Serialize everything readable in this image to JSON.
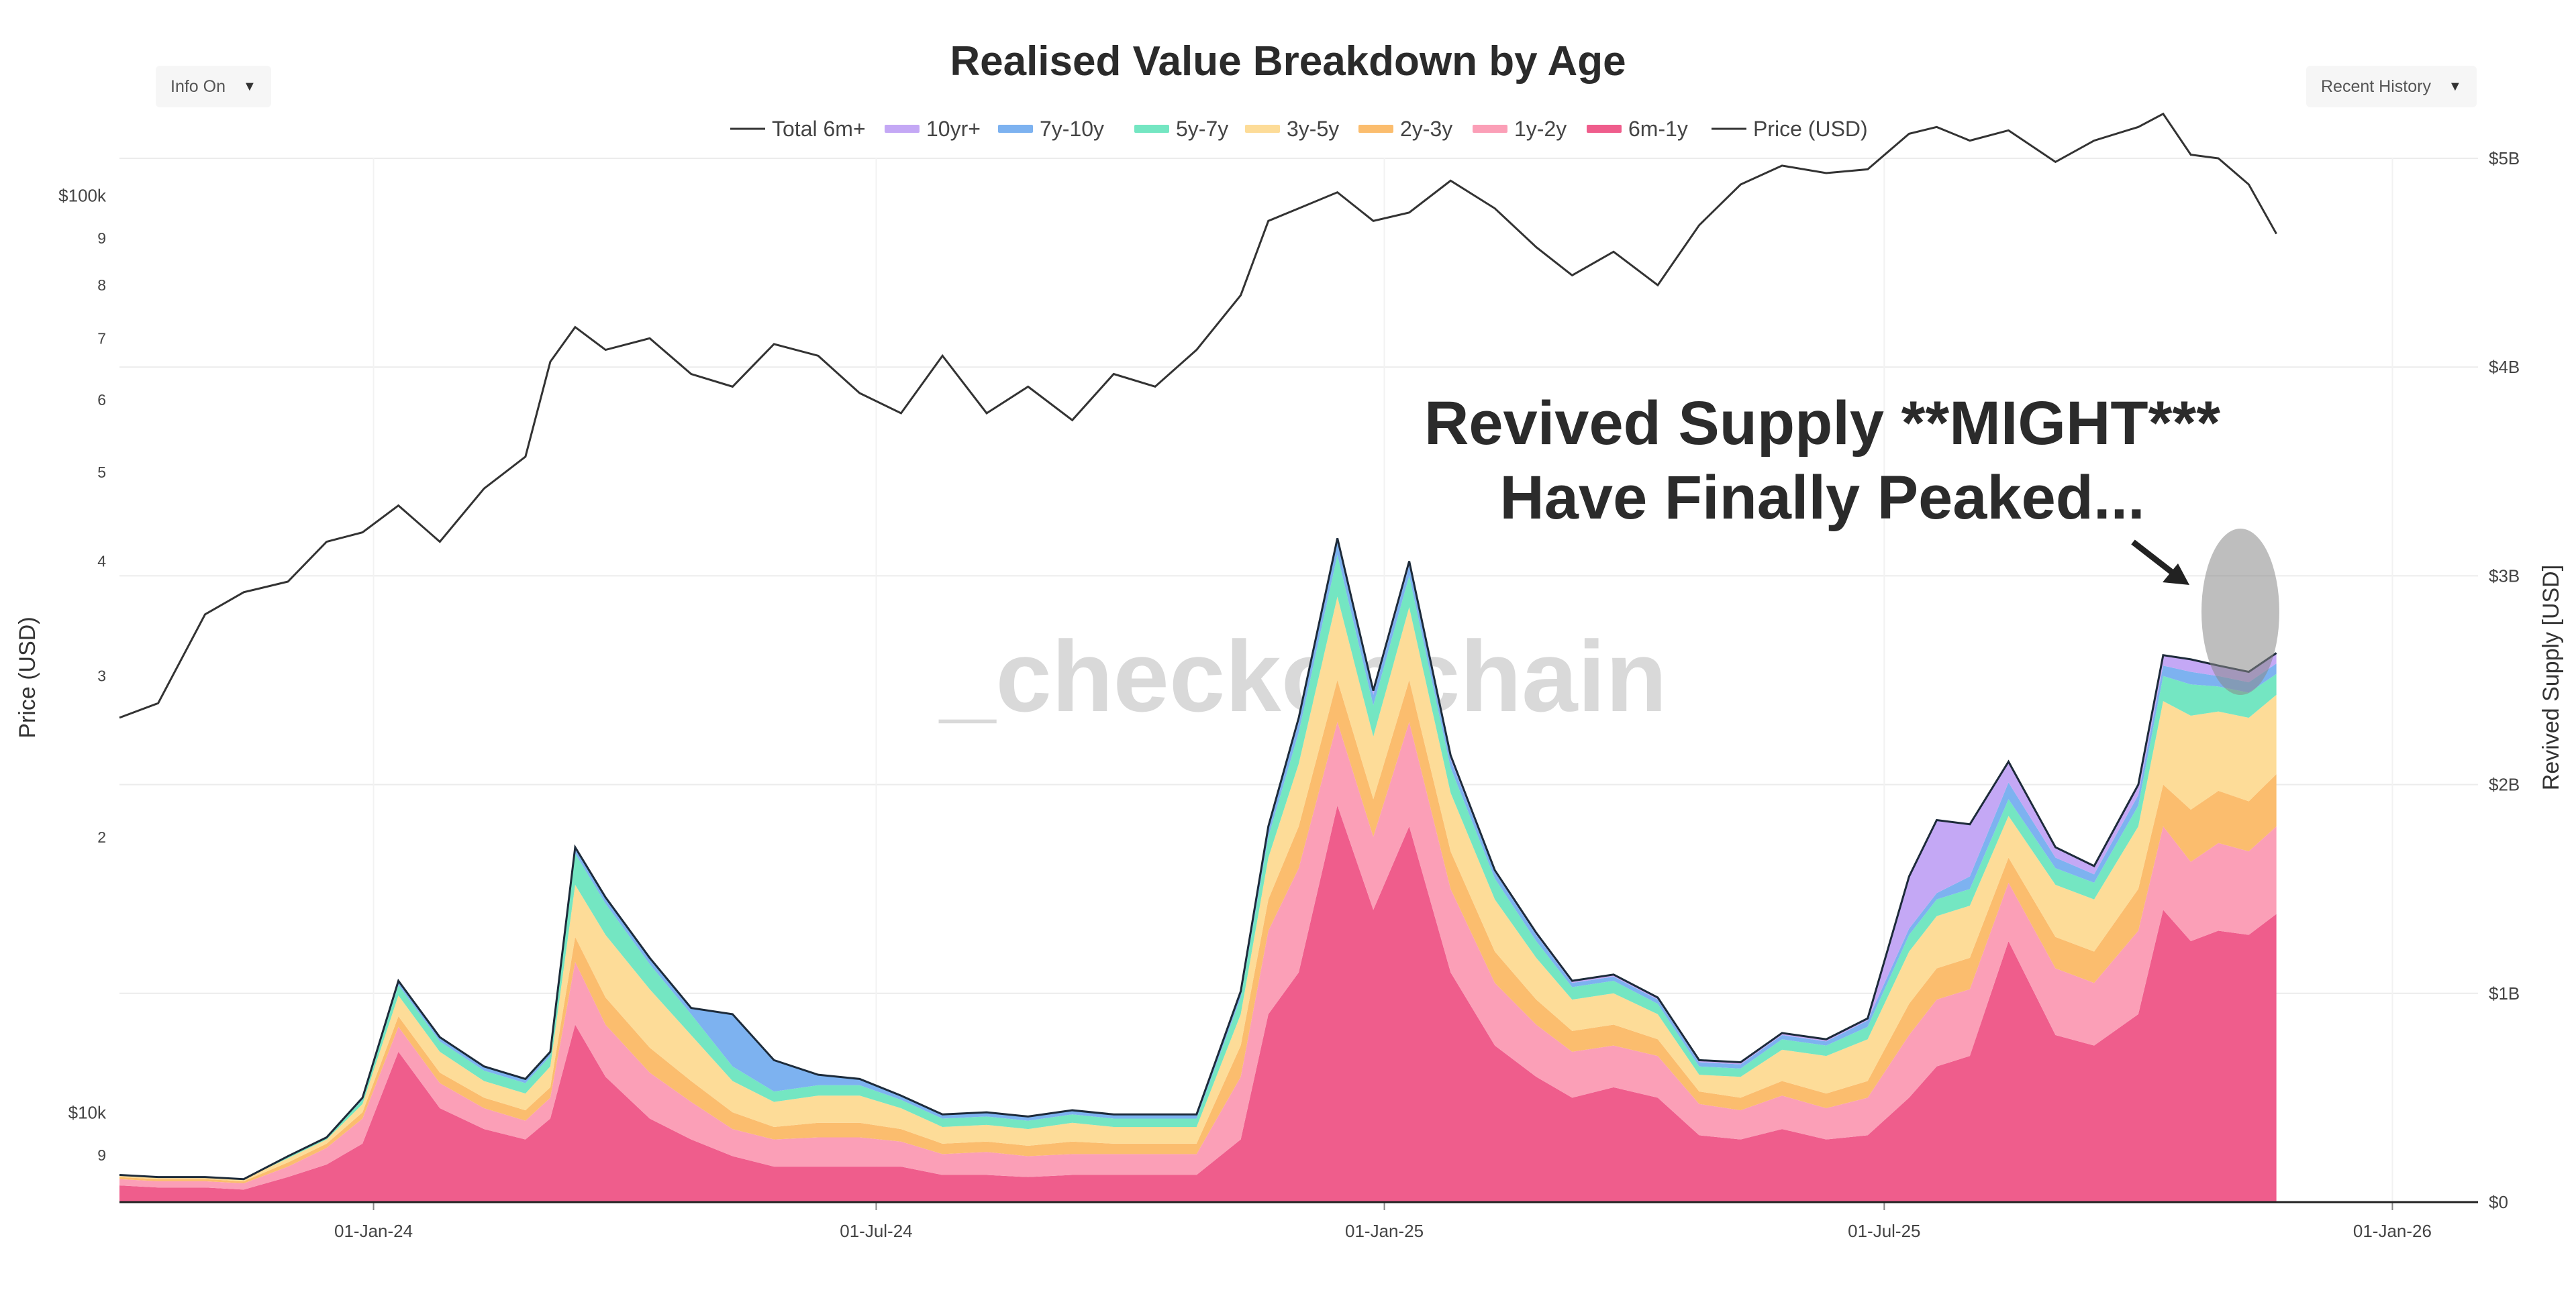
{
  "controls": {
    "info_label": "Info On",
    "history_label": "Recent History",
    "caret": "▼"
  },
  "chart_data": {
    "type": "area",
    "title": "Realised Value Breakdown by Age",
    "ylabel_left": "Price (USD)",
    "ylabel_right": "Revived Supply [USD]",
    "watermark": "_checkonchain",
    "annotation": [
      "Revived Supply **MIGHT***",
      "Have Finally Peaked..."
    ],
    "x_ticks": [
      "01-Jan-24",
      "01-Jul-24",
      "01-Jan-25",
      "01-Jul-25",
      "01-Jan-26"
    ],
    "y_right_ticks": [
      "$0",
      "$1B",
      "$2B",
      "$3B",
      "$4B",
      "$5B"
    ],
    "y_right_range": [
      0,
      5000000000
    ],
    "y_left_ticks": [
      "$10k",
      "9",
      "$100k",
      "9",
      "8",
      "7",
      "6",
      "5",
      "4",
      "3",
      "2"
    ],
    "y_left_scale": "log",
    "y_left_range": [
      8000,
      110000
    ],
    "legend": [
      {
        "name": "Total 6m+",
        "kind": "line",
        "color": "#333333"
      },
      {
        "name": "10yr+",
        "kind": "area",
        "color": "#c4a8f5"
      },
      {
        "name": "7y-10y",
        "kind": "area",
        "color": "#7db2f0"
      },
      {
        "name": "5y-7y",
        "kind": "area",
        "color": "#74e6c2"
      },
      {
        "name": "3y-5y",
        "kind": "area",
        "color": "#fddc98"
      },
      {
        "name": "2y-3y",
        "kind": "area",
        "color": "#fbbd6e"
      },
      {
        "name": "1y-2y",
        "kind": "area",
        "color": "#fb9fb7"
      },
      {
        "name": "6m-1y",
        "kind": "area",
        "color": "#ef5d8c"
      },
      {
        "name": "Price (USD)",
        "kind": "line",
        "color": "#333333"
      }
    ],
    "dates": [
      "2023-10-01",
      "2023-10-15",
      "2023-11-01",
      "2023-11-15",
      "2023-12-01",
      "2023-12-15",
      "2023-12-28",
      "2024-01-10",
      "2024-01-25",
      "2024-02-10",
      "2024-02-25",
      "2024-03-05",
      "2024-03-14",
      "2024-03-25",
      "2024-04-10",
      "2024-04-25",
      "2024-05-10",
      "2024-05-25",
      "2024-06-10",
      "2024-06-25",
      "2024-07-10",
      "2024-07-25",
      "2024-08-10",
      "2024-08-25",
      "2024-09-10",
      "2024-09-25",
      "2024-10-10",
      "2024-10-25",
      "2024-11-10",
      "2024-11-20",
      "2024-12-01",
      "2024-12-15",
      "2024-12-28",
      "2025-01-10",
      "2025-01-25",
      "2025-02-10",
      "2025-02-25",
      "2025-03-10",
      "2025-03-25",
      "2025-04-10",
      "2025-04-25",
      "2025-05-10",
      "2025-05-25",
      "2025-06-10",
      "2025-06-25",
      "2025-07-10",
      "2025-07-20",
      "2025-08-01",
      "2025-08-15",
      "2025-09-01",
      "2025-09-15",
      "2025-10-01",
      "2025-10-10",
      "2025-10-20",
      "2025-10-30",
      "2025-11-10",
      "2025-11-20"
    ],
    "series": [
      {
        "name": "6m-1y",
        "values": [
          0.08,
          0.07,
          0.07,
          0.06,
          0.12,
          0.18,
          0.28,
          0.72,
          0.45,
          0.35,
          0.3,
          0.4,
          0.85,
          0.6,
          0.4,
          0.3,
          0.22,
          0.17,
          0.17,
          0.17,
          0.17,
          0.13,
          0.13,
          0.12,
          0.13,
          0.13,
          0.13,
          0.13,
          0.3,
          0.9,
          1.1,
          1.9,
          1.4,
          1.8,
          1.1,
          0.75,
          0.6,
          0.5,
          0.55,
          0.5,
          0.32,
          0.3,
          0.35,
          0.3,
          0.32,
          0.5,
          0.65,
          0.7,
          1.25,
          0.8,
          0.75,
          0.9,
          1.4,
          1.25,
          1.3,
          1.28,
          1.38
        ]
      },
      {
        "name": "1y-2y",
        "values": [
          0.03,
          0.03,
          0.03,
          0.03,
          0.05,
          0.08,
          0.12,
          0.12,
          0.12,
          0.1,
          0.09,
          0.1,
          0.3,
          0.25,
          0.22,
          0.18,
          0.13,
          0.13,
          0.14,
          0.14,
          0.12,
          0.1,
          0.11,
          0.1,
          0.1,
          0.1,
          0.1,
          0.1,
          0.3,
          0.4,
          0.5,
          0.4,
          0.35,
          0.5,
          0.4,
          0.3,
          0.25,
          0.22,
          0.2,
          0.2,
          0.15,
          0.14,
          0.16,
          0.15,
          0.18,
          0.3,
          0.32,
          0.32,
          0.28,
          0.32,
          0.3,
          0.4,
          0.4,
          0.38,
          0.42,
          0.4,
          0.42
        ]
      },
      {
        "name": "2y-3y",
        "values": [
          0.01,
          0.01,
          0.01,
          0.01,
          0.02,
          0.02,
          0.03,
          0.05,
          0.05,
          0.05,
          0.05,
          0.05,
          0.12,
          0.13,
          0.12,
          0.1,
          0.08,
          0.06,
          0.07,
          0.07,
          0.06,
          0.05,
          0.05,
          0.05,
          0.06,
          0.05,
          0.05,
          0.05,
          0.15,
          0.15,
          0.2,
          0.2,
          0.18,
          0.2,
          0.18,
          0.15,
          0.12,
          0.1,
          0.1,
          0.08,
          0.06,
          0.06,
          0.07,
          0.07,
          0.08,
          0.15,
          0.15,
          0.15,
          0.12,
          0.15,
          0.15,
          0.2,
          0.2,
          0.25,
          0.25,
          0.24,
          0.25
        ]
      },
      {
        "name": "3y-5y",
        "values": [
          0.01,
          0.01,
          0.01,
          0.01,
          0.02,
          0.02,
          0.04,
          0.1,
          0.1,
          0.08,
          0.08,
          0.1,
          0.25,
          0.3,
          0.28,
          0.22,
          0.15,
          0.12,
          0.13,
          0.13,
          0.1,
          0.08,
          0.08,
          0.08,
          0.09,
          0.08,
          0.08,
          0.08,
          0.15,
          0.2,
          0.3,
          0.4,
          0.3,
          0.35,
          0.28,
          0.25,
          0.2,
          0.15,
          0.15,
          0.12,
          0.08,
          0.1,
          0.15,
          0.18,
          0.2,
          0.25,
          0.25,
          0.25,
          0.2,
          0.25,
          0.25,
          0.3,
          0.4,
          0.45,
          0.38,
          0.4,
          0.38
        ]
      },
      {
        "name": "5y-7y",
        "values": [
          0.0,
          0.0,
          0.0,
          0.0,
          0.01,
          0.01,
          0.02,
          0.05,
          0.05,
          0.05,
          0.05,
          0.05,
          0.15,
          0.15,
          0.12,
          0.1,
          0.07,
          0.05,
          0.05,
          0.05,
          0.04,
          0.04,
          0.04,
          0.04,
          0.04,
          0.04,
          0.04,
          0.04,
          0.08,
          0.1,
          0.15,
          0.2,
          0.15,
          0.15,
          0.12,
          0.1,
          0.08,
          0.06,
          0.06,
          0.05,
          0.04,
          0.04,
          0.05,
          0.05,
          0.06,
          0.08,
          0.08,
          0.08,
          0.08,
          0.08,
          0.08,
          0.1,
          0.12,
          0.15,
          0.12,
          0.12,
          0.1
        ]
      },
      {
        "name": "7y-10y",
        "values": [
          0.0,
          0.0,
          0.0,
          0.0,
          0.0,
          0.0,
          0.01,
          0.02,
          0.02,
          0.02,
          0.02,
          0.02,
          0.03,
          0.03,
          0.03,
          0.03,
          0.25,
          0.15,
          0.05,
          0.03,
          0.02,
          0.02,
          0.02,
          0.02,
          0.02,
          0.02,
          0.02,
          0.02,
          0.03,
          0.04,
          0.05,
          0.06,
          0.05,
          0.05,
          0.04,
          0.03,
          0.03,
          0.02,
          0.02,
          0.02,
          0.02,
          0.02,
          0.02,
          0.02,
          0.03,
          0.03,
          0.03,
          0.06,
          0.08,
          0.05,
          0.04,
          0.05,
          0.05,
          0.06,
          0.05,
          0.05,
          0.05
        ]
      },
      {
        "name": "10yr+",
        "values": [
          0.0,
          0.0,
          0.0,
          0.0,
          0.0,
          0.0,
          0.0,
          0.0,
          0.0,
          0.0,
          0.0,
          0.0,
          0.0,
          0.0,
          0.0,
          0.0,
          0.0,
          0.0,
          0.0,
          0.0,
          0.0,
          0.0,
          0.0,
          0.0,
          0.0,
          0.0,
          0.0,
          0.0,
          0.0,
          0.01,
          0.02,
          0.02,
          0.02,
          0.02,
          0.02,
          0.01,
          0.01,
          0.01,
          0.01,
          0.01,
          0.01,
          0.01,
          0.01,
          0.01,
          0.01,
          0.25,
          0.35,
          0.25,
          0.1,
          0.05,
          0.04,
          0.05,
          0.05,
          0.06,
          0.05,
          0.05,
          0.05
        ]
      }
    ],
    "price": [
      27000,
      28000,
      35000,
      37000,
      38000,
      42000,
      43000,
      46000,
      42000,
      48000,
      52000,
      66000,
      72000,
      68000,
      70000,
      64000,
      62000,
      69000,
      67000,
      61000,
      58000,
      67000,
      58000,
      62000,
      57000,
      64000,
      62000,
      68000,
      78000,
      94000,
      97000,
      101000,
      94000,
      96000,
      104000,
      97000,
      88000,
      82000,
      87000,
      80000,
      93000,
      103000,
      108000,
      106000,
      107000,
      117000,
      119000,
      115000,
      118000,
      109000,
      115000,
      119000,
      123000,
      111000,
      110000,
      103000,
      91000
    ]
  }
}
